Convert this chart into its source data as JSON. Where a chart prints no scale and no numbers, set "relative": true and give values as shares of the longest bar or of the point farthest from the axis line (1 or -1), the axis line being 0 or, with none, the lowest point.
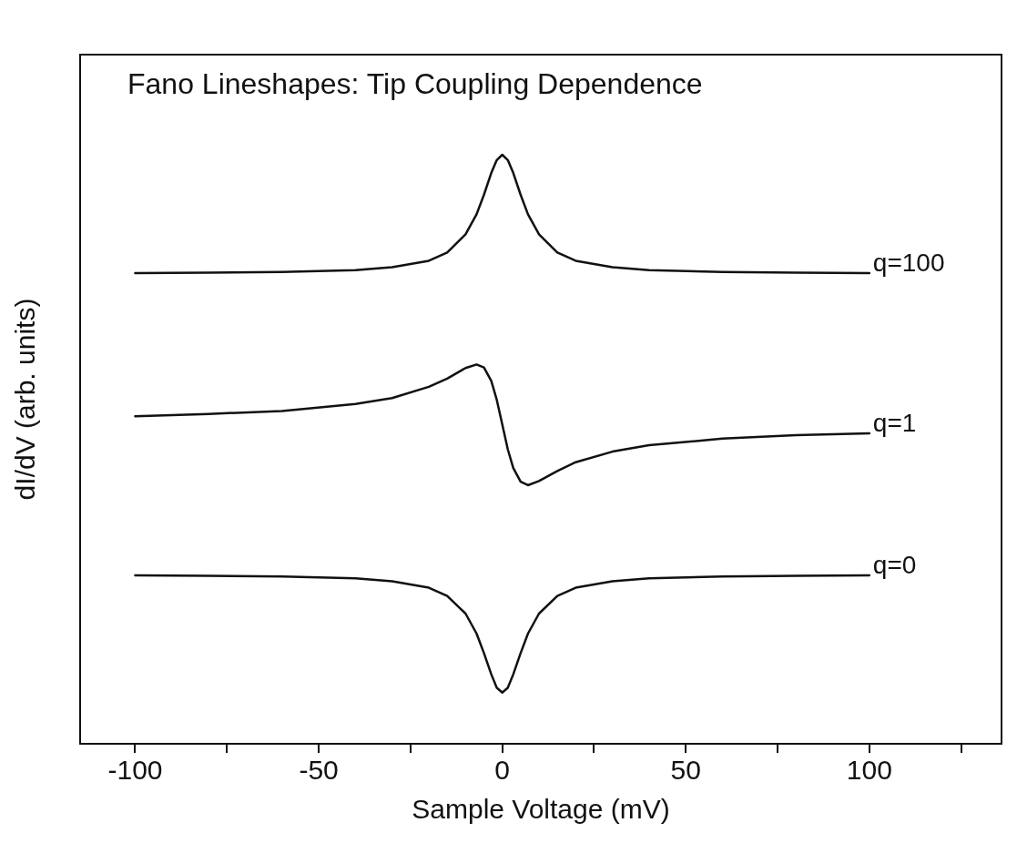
{
  "chart_data": {
    "type": "line",
    "title": "Fano Lineshapes: Tip Coupling Dependence",
    "xlabel": "Sample Voltage (mV)",
    "ylabel": "dI/dV (arb. units)",
    "relative": true,
    "x": [
      -100,
      -80,
      -60,
      -40,
      -30,
      -20,
      -15,
      -10,
      -7,
      -5,
      -3,
      -1.5,
      0,
      1.5,
      3,
      5,
      7,
      10,
      15,
      20,
      30,
      40,
      60,
      80,
      100
    ],
    "series": [
      {
        "name": "q=100",
        "color": "#111111",
        "values": [
          0.799,
          0.8,
          0.801,
          0.804,
          0.809,
          0.82,
          0.834,
          0.865,
          0.899,
          0.932,
          0.969,
          0.991,
          1.0,
          0.991,
          0.969,
          0.932,
          0.899,
          0.865,
          0.834,
          0.82,
          0.809,
          0.804,
          0.801,
          0.8,
          0.799
        ]
      },
      {
        "name": "q=1",
        "color": "#111111",
        "values": [
          0.556,
          0.56,
          0.565,
          0.577,
          0.587,
          0.606,
          0.62,
          0.638,
          0.644,
          0.639,
          0.616,
          0.584,
          0.542,
          0.5,
          0.468,
          0.445,
          0.439,
          0.446,
          0.463,
          0.478,
          0.496,
          0.507,
          0.518,
          0.524,
          0.527
        ]
      },
      {
        "name": "q=0",
        "color": "#111111",
        "values": [
          0.286,
          0.285,
          0.284,
          0.281,
          0.276,
          0.265,
          0.251,
          0.221,
          0.187,
          0.154,
          0.118,
          0.095,
          0.087,
          0.095,
          0.118,
          0.154,
          0.187,
          0.221,
          0.251,
          0.265,
          0.276,
          0.281,
          0.284,
          0.285,
          0.286
        ]
      }
    ],
    "xlim": [
      -115,
      136
    ],
    "xticks": [
      -100,
      {
        "value": -75,
        "label": null
      },
      -50,
      {
        "value": -25,
        "label": null
      },
      0,
      {
        "value": 25,
        "label": null
      },
      50,
      {
        "value": 75,
        "label": null
      },
      100,
      {
        "value": 125,
        "label": null
      }
    ],
    "grid": false,
    "legend": false,
    "marker": "none",
    "line_style": "solid"
  }
}
